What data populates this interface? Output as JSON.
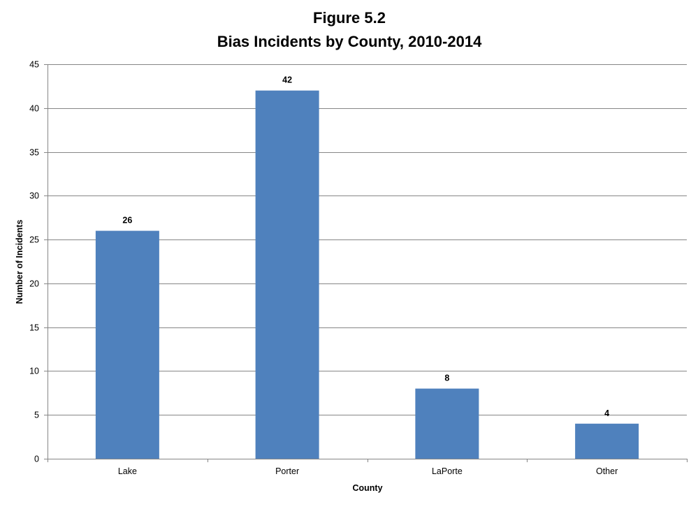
{
  "chart_data": {
    "type": "bar",
    "title": "Figure 5.2",
    "subtitle": "Bias Incidents by County, 2010-2014",
    "xlabel": "County",
    "ylabel": "Number of Incidents",
    "categories": [
      "Lake",
      "Porter",
      "LaPorte",
      "Other"
    ],
    "values": [
      26,
      42,
      8,
      4
    ],
    "ylim": [
      0,
      45
    ],
    "yticks": [
      0,
      5,
      10,
      15,
      20,
      25,
      30,
      35,
      40,
      45
    ],
    "grid": true,
    "legend": "none",
    "bar_color": "#4F81BD",
    "data_labels": [
      "26",
      "42",
      "8",
      "4"
    ]
  }
}
